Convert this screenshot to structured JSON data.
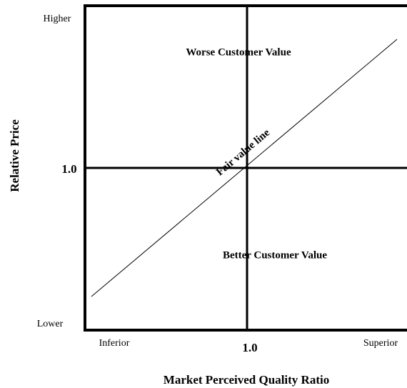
{
  "y_axis": {
    "label": "Relative Price",
    "top": "Higher",
    "middle": "1.0",
    "bottom": "Lower"
  },
  "x_axis": {
    "label": "Market Perceived Quality Ratio",
    "left": "Inferior",
    "middle": "1.0",
    "right": "Superior"
  },
  "regions": {
    "upper": "Worse Customer Value",
    "lower": "Better Customer Value"
  },
  "line_label": "Fair value line"
}
